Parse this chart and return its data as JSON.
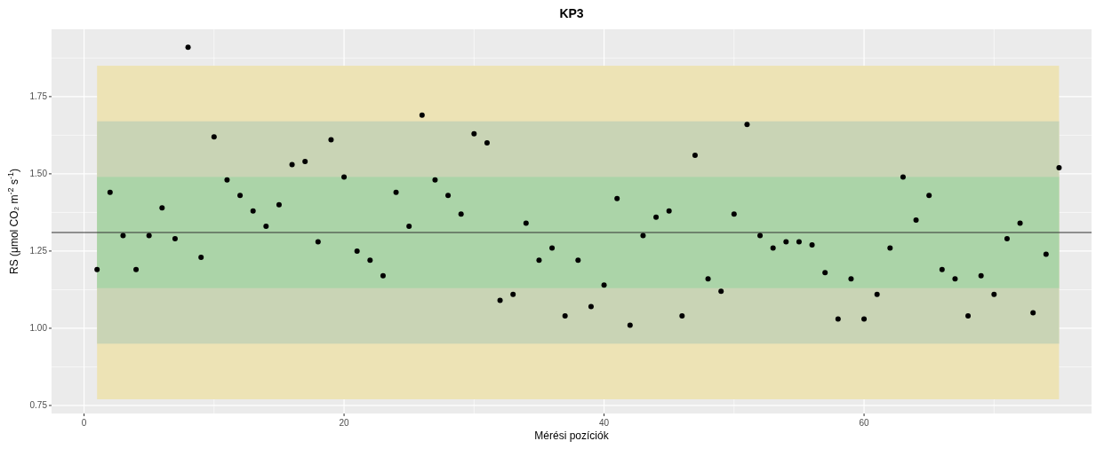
{
  "chart_data": {
    "type": "scatter",
    "title": "KP3",
    "xlabel": "Mérési pozíciók",
    "ylabel": "RS (μmol CO₂ m$^{-2}$ s$^{-1}$)",
    "series": [
      {
        "color": "#000000",
        "x": [
          1,
          2,
          3,
          4,
          5,
          6,
          7,
          8,
          9,
          10,
          11,
          12,
          13,
          14,
          15,
          16,
          17,
          18,
          19,
          20,
          21,
          22,
          23,
          24,
          25,
          26,
          27,
          28,
          29,
          30,
          31,
          32,
          33,
          34,
          35,
          36,
          37,
          38,
          39,
          40,
          41,
          42,
          43,
          44,
          45,
          46,
          47,
          48,
          49,
          50,
          51,
          52,
          53,
          54,
          55,
          56,
          57,
          58,
          59,
          60,
          61,
          62,
          63,
          64,
          65,
          66,
          67,
          68,
          69,
          70,
          71,
          72,
          73,
          74,
          75
        ],
        "values": [
          1.19,
          1.44,
          1.3,
          1.19,
          1.3,
          1.39,
          1.29,
          1.91,
          1.23,
          1.62,
          1.48,
          1.43,
          1.38,
          1.33,
          1.4,
          1.53,
          1.54,
          1.28,
          1.61,
          1.49,
          1.25,
          1.22,
          1.17,
          1.44,
          1.33,
          1.69,
          1.48,
          1.43,
          1.37,
          1.63,
          1.6,
          1.09,
          1.11,
          1.34,
          1.22,
          1.26,
          1.04,
          1.22,
          1.07,
          1.14,
          1.42,
          1.01,
          1.3,
          1.36,
          1.38,
          1.04,
          1.56,
          1.16,
          1.12,
          1.37,
          1.66,
          1.3,
          1.26,
          1.28,
          1.28,
          1.27,
          1.18,
          1.03,
          1.16,
          1.03,
          1.11,
          1.26,
          1.49,
          1.35,
          1.43,
          1.19,
          1.16,
          1.04,
          1.17,
          1.11,
          1.29,
          1.34,
          1.05,
          1.24,
          1.52
        ]
      }
    ],
    "bands": [
      {
        "axis": "y",
        "from": 0.77,
        "to": 1.85,
        "color": "#ede3b5"
      },
      {
        "axis": "y",
        "from": 0.95,
        "to": 1.67,
        "color": "#c9d4b5"
      },
      {
        "axis": "y",
        "from": 1.13,
        "to": 1.49,
        "color": "#abd4a8"
      }
    ],
    "ref_lines": [
      {
        "axis": "y",
        "value": 1.31,
        "color": "#333333"
      }
    ],
    "xlim": [
      -2.5,
      77.5
    ],
    "xticks": [
      0,
      20,
      40,
      60
    ],
    "ylim": [
      0.724,
      1.968
    ],
    "yticks": [
      {
        "value": 0.75,
        "label": "0.75"
      },
      {
        "value": 1.0,
        "label": "1.00"
      },
      {
        "value": 1.25,
        "label": "1.25"
      },
      {
        "value": 1.5,
        "label": "1.50"
      },
      {
        "value": 1.75,
        "label": "1.75"
      }
    ],
    "grid": true,
    "marker": "circle"
  }
}
